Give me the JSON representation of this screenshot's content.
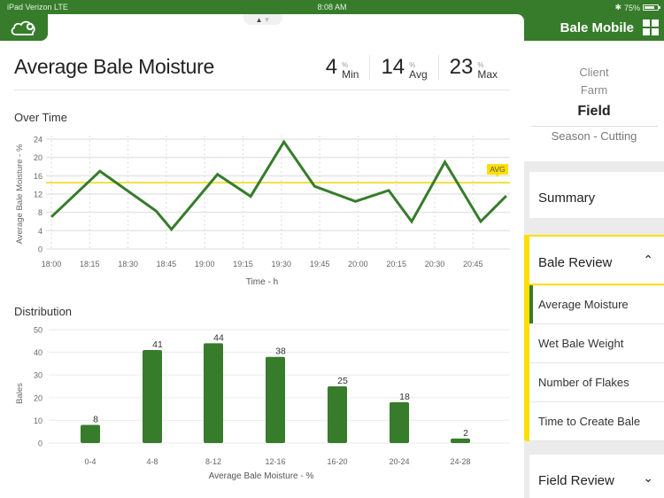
{
  "status_bar": {
    "carrier": "iPad  Verizon  LTE",
    "time": "8:08 AM",
    "bluetooth_icon": "bluetooth-icon",
    "battery_percent": "75%",
    "battery_icon": "battery-icon"
  },
  "header": {
    "logo_icon": "cloud-sync-icon",
    "app_title": "Bale Mobile",
    "apps_icon": "grid-icon",
    "handle_icons": [
      "arrow-up-icon",
      "arrow-down-icon"
    ]
  },
  "page": {
    "title": "Average Bale Moisture",
    "stats": [
      {
        "value": "4",
        "unit": "%",
        "label": "Min"
      },
      {
        "value": "14",
        "unit": "%",
        "label": "Avg"
      },
      {
        "value": "23",
        "unit": "%",
        "label": "Max"
      }
    ]
  },
  "over_time": {
    "title": "Over Time",
    "avg_label": "AVG"
  },
  "distribution": {
    "title": "Distribution"
  },
  "chart_data": [
    {
      "type": "line",
      "title": "Over Time",
      "xlabel": "Time - h",
      "ylabel": "Average Bale Moisture - %",
      "ylim": [
        0,
        24
      ],
      "yticks": [
        0,
        4,
        8,
        12,
        16,
        20,
        24
      ],
      "xticks": [
        "18:00",
        "18:15",
        "18:30",
        "18:45",
        "19:00",
        "19:15",
        "19:30",
        "19:45",
        "20:00",
        "20:15",
        "20:30",
        "20:45"
      ],
      "grid": true,
      "series": [
        {
          "name": "Average Bale Moisture",
          "color": "#367c2b",
          "x": [
            "18:00",
            "18:19",
            "18:41",
            "18:47",
            "19:05",
            "19:18",
            "19:31",
            "19:43",
            "19:59",
            "20:12",
            "20:21",
            "20:34",
            "20:48",
            "20:58"
          ],
          "values": [
            7.0,
            17.0,
            8.3,
            4.3,
            16.3,
            11.5,
            23.4,
            13.7,
            10.4,
            12.8,
            6.0,
            19.0,
            6.0,
            11.6
          ]
        }
      ],
      "reference_lines": [
        {
          "label": "AVG",
          "value": 14.5,
          "color": "#f0e040"
        }
      ]
    },
    {
      "type": "bar",
      "title": "Distribution",
      "xlabel": "Average Bale Moisture - %",
      "ylabel": "Bales",
      "ylim": [
        0,
        50
      ],
      "yticks": [
        0,
        10,
        20,
        30,
        40,
        50
      ],
      "categories": [
        "0-4",
        "4-8",
        "8-12",
        "12-16",
        "16-20",
        "20-24",
        "24-28"
      ],
      "values": [
        8,
        41,
        44,
        38,
        25,
        18,
        2
      ],
      "data_labels": true,
      "grid": true,
      "color": "#367c2b"
    }
  ],
  "sidebar": {
    "context": {
      "client": "Client",
      "farm": "Farm",
      "field": "Field",
      "season": "Season - Cutting"
    },
    "summary": "Summary",
    "bale_review": {
      "title": "Bale Review",
      "expanded": true,
      "chevron_icon": "chevron-up-icon",
      "items": [
        {
          "label": "Average Moisture",
          "active": true
        },
        {
          "label": "Wet Bale Weight",
          "active": false
        },
        {
          "label": "Number of Flakes",
          "active": false
        },
        {
          "label": "Time to Create Bale",
          "active": false
        }
      ]
    },
    "field_review": {
      "title": "Field Review",
      "expanded": false,
      "chevron_icon": "chevron-down-icon"
    }
  },
  "colors": {
    "brand_green": "#367c2b",
    "accent_yellow": "#ffde00",
    "avg_line": "#f0e040"
  }
}
